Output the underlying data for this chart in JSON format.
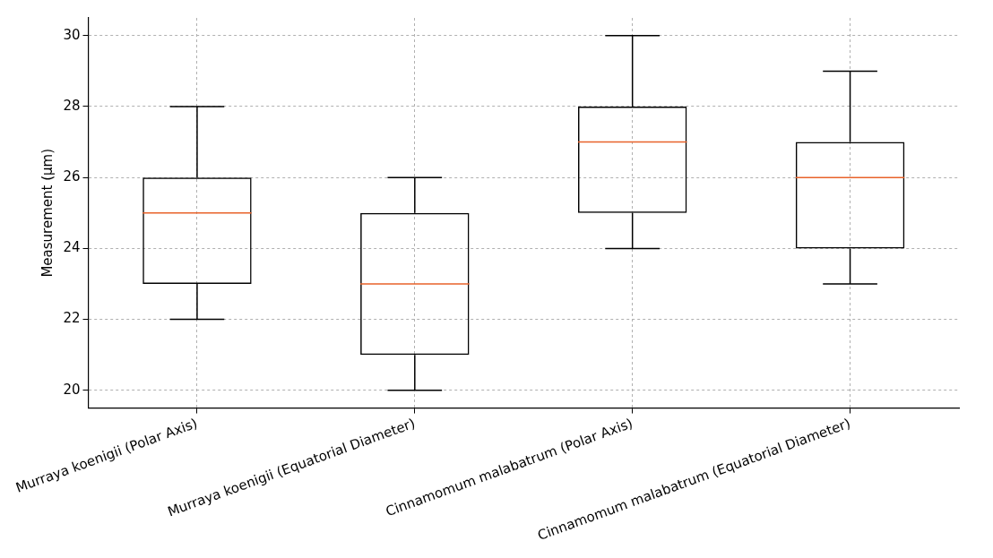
{
  "chart_data": {
    "type": "box",
    "ylabel": "Measurement (µm)",
    "categories": [
      "Murraya koenigii (Polar Axis)",
      "Murraya koenigii (Equatorial Diameter)",
      "Cinnamomum malabatrum (Polar Axis)",
      "Cinnamomum malabatrum (Equatorial Diameter)"
    ],
    "series": [
      {
        "color": "#000000",
        "boxes": [
          {
            "low": 22,
            "q1": 23,
            "median": 25,
            "q3": 26,
            "high": 28
          },
          {
            "low": 20,
            "q1": 21,
            "median": 23,
            "q3": 25,
            "high": 26
          },
          {
            "low": 24,
            "q1": 25,
            "median": 27,
            "q3": 28,
            "high": 30
          },
          {
            "low": 23,
            "q1": 24,
            "median": 26,
            "q3": 27,
            "high": 29
          }
        ]
      }
    ],
    "ylim": [
      19.5,
      30.5
    ],
    "yticks": [
      20,
      22,
      24,
      26,
      28,
      30
    ],
    "grid": true,
    "legend": false
  }
}
